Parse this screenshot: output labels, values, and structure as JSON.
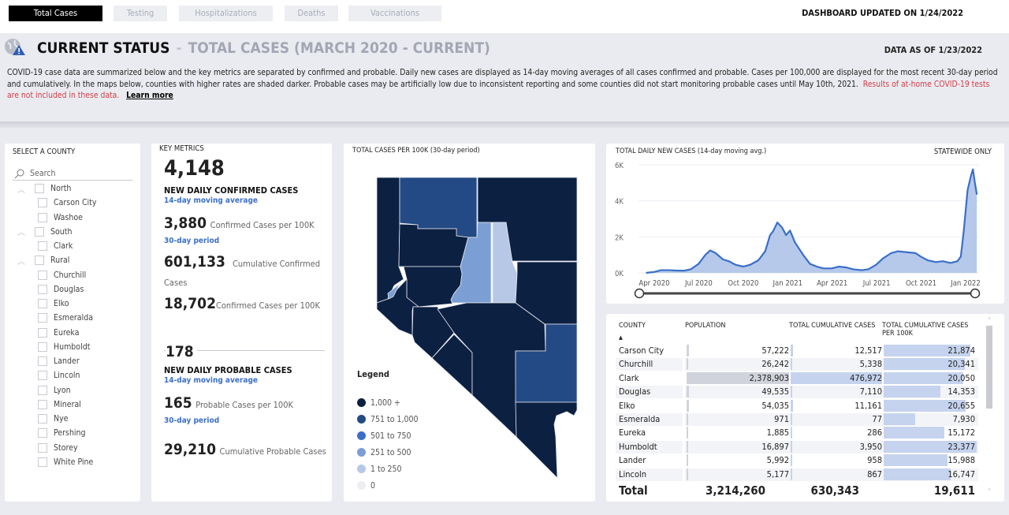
{
  "tabs": [
    {
      "label": "Total Cases",
      "active": true
    },
    {
      "label": "Testing"
    },
    {
      "label": "Hospitalizations"
    },
    {
      "label": "Deaths"
    },
    {
      "label": "Vaccinations"
    }
  ],
  "dashboard_updated": "DASHBOARD UPDATED ON 1/24/2022",
  "header": {
    "icon": "globe-warning-icon",
    "title": "CURRENT STATUS",
    "separator": "-",
    "subtitle": "TOTAL CASES (MARCH 2020 - CURRENT)",
    "data_as_of": "DATA AS OF 1/23/2022",
    "description": "COVID-19 case data are summarized below and the key metrics are separated by confirmed and probable. Daily new cases are displayed as 14-day moving averages of all cases confirmed and probable. Cases per 100,000 are displayed for the most recent 30-day period and cumulatively. In the maps below, counties with higher rates are shaded darker. Probable cases may be artificially low due to inconsistent reporting and some counties did not start monitoring probable cases until May 10th, 2021.",
    "warning": "Results of at-home COVID-19 tests are not included in these data.",
    "learn_more": "Learn more"
  },
  "county_filter": {
    "title": "SELECT A COUNTY",
    "search_placeholder": "Search",
    "groups": [
      {
        "label": "North",
        "items": [
          "Carson City",
          "Washoe"
        ]
      },
      {
        "label": "South",
        "items": [
          "Clark"
        ]
      },
      {
        "label": "Rural",
        "items": [
          "Churchill",
          "Douglas",
          "Elko",
          "Esmeralda",
          "Eureka",
          "Humboldt",
          "Lander",
          "Lincoln",
          "Lyon",
          "Mineral",
          "Nye",
          "Pershing",
          "Storey",
          "White Pine"
        ]
      }
    ]
  },
  "key_metrics": {
    "title": "KEY METRICS",
    "confirmed": {
      "daily": "4,148",
      "daily_label": "NEW DAILY CONFIRMED CASES",
      "daily_sub": "14-day moving average",
      "per100k_30": "3,880",
      "per100k_30_label": "Confirmed Cases per 100K",
      "period": "30-day period",
      "cumulative": "601,133",
      "cumulative_label": "Cumulative Confirmed Cases",
      "cum_per100k": "18,702",
      "cum_per100k_label": "Confirmed Cases per 100K"
    },
    "probable": {
      "daily": "178",
      "daily_label": "NEW DAILY PROBABLE CASES",
      "daily_sub": "14-day moving average",
      "per100k_30": "165",
      "per100k_30_label": "Probable Cases per 100K",
      "period": "30-day period",
      "cumulative": "29,210",
      "cumulative_label": "Cumulative Probable Cases"
    }
  },
  "map": {
    "title": "TOTAL CASES PER 100K (30-day period)",
    "legend_title": "Legend",
    "legend": [
      {
        "label": "1,000 +",
        "color": "#0c2042"
      },
      {
        "label": "751 to 1,000",
        "color": "#244a85"
      },
      {
        "label": "501 to 750",
        "color": "#3a6fc9"
      },
      {
        "label": "251 to 500",
        "color": "#7b9fd4"
      },
      {
        "label": "1 to 250",
        "color": "#b7c8e6"
      },
      {
        "label": "0",
        "color": "#eceef2"
      }
    ]
  },
  "chart_data": {
    "type": "area",
    "title": "TOTAL DAILY NEW CASES (14-day moving avg.)",
    "note": "STATEWIDE ONLY",
    "ylim": [
      0,
      6000
    ],
    "yticks": [
      "0K",
      "2K",
      "4K",
      "6K"
    ],
    "xticks": [
      "Apr 2020",
      "Jul 2020",
      "Oct 2020",
      "Jan 2021",
      "Apr 2021",
      "Jul 2021",
      "Oct 2021",
      "Jan 2022"
    ],
    "color": "#3a6fc9",
    "fill": "#a9c0e6",
    "x": [
      "2020-03-15",
      "2020-04-01",
      "2020-04-15",
      "2020-05-01",
      "2020-05-15",
      "2020-06-01",
      "2020-06-15",
      "2020-07-01",
      "2020-07-15",
      "2020-07-25",
      "2020-08-05",
      "2020-08-20",
      "2020-09-01",
      "2020-09-15",
      "2020-10-01",
      "2020-10-15",
      "2020-11-01",
      "2020-11-15",
      "2020-11-25",
      "2020-12-01",
      "2020-12-10",
      "2020-12-20",
      "2020-12-28",
      "2021-01-05",
      "2021-01-15",
      "2021-02-01",
      "2021-02-15",
      "2021-03-01",
      "2021-03-15",
      "2021-04-01",
      "2021-04-15",
      "2021-05-01",
      "2021-05-15",
      "2021-06-01",
      "2021-06-15",
      "2021-07-01",
      "2021-07-15",
      "2021-08-01",
      "2021-08-15",
      "2021-09-01",
      "2021-09-20",
      "2021-10-01",
      "2021-10-15",
      "2021-11-01",
      "2021-11-15",
      "2021-12-01",
      "2021-12-15",
      "2021-12-22",
      "2021-12-28",
      "2022-01-05",
      "2022-01-12",
      "2022-01-16",
      "2022-01-20",
      "2022-01-24"
    ],
    "values": [
      0,
      50,
      150,
      150,
      130,
      120,
      200,
      500,
      1000,
      1250,
      1100,
      750,
      650,
      450,
      350,
      450,
      700,
      1200,
      2100,
      2300,
      2800,
      2500,
      2100,
      2350,
      1700,
      1000,
      500,
      350,
      250,
      250,
      350,
      300,
      200,
      150,
      200,
      450,
      800,
      1100,
      1200,
      1150,
      1100,
      900,
      700,
      600,
      650,
      550,
      650,
      900,
      2300,
      4600,
      5400,
      5750,
      5000,
      4350
    ]
  },
  "table": {
    "headers": [
      "COUNTY",
      "POPULATION",
      "TOTAL CUMULATIVE CASES",
      "TOTAL CUMULATIVE CASES PER 100K"
    ],
    "rows": [
      [
        "Carson City",
        "57,222",
        "12,517",
        "21,874"
      ],
      [
        "Churchill",
        "26,242",
        "5,338",
        "20,341"
      ],
      [
        "Clark",
        "2,378,903",
        "476,972",
        "20,050"
      ],
      [
        "Douglas",
        "49,535",
        "7,110",
        "14,353"
      ],
      [
        "Elko",
        "54,035",
        "11,161",
        "20,655"
      ],
      [
        "Esmeralda",
        "971",
        "77",
        "7,930"
      ],
      [
        "Eureka",
        "1,885",
        "286",
        "15,172"
      ],
      [
        "Humboldt",
        "16,897",
        "3,950",
        "23,377"
      ],
      [
        "Lander",
        "5,992",
        "958",
        "15,988"
      ],
      [
        "Lincoln",
        "5,177",
        "867",
        "16,747"
      ]
    ],
    "total": [
      "Total",
      "3,214,260",
      "630,343",
      "19,611"
    ]
  }
}
